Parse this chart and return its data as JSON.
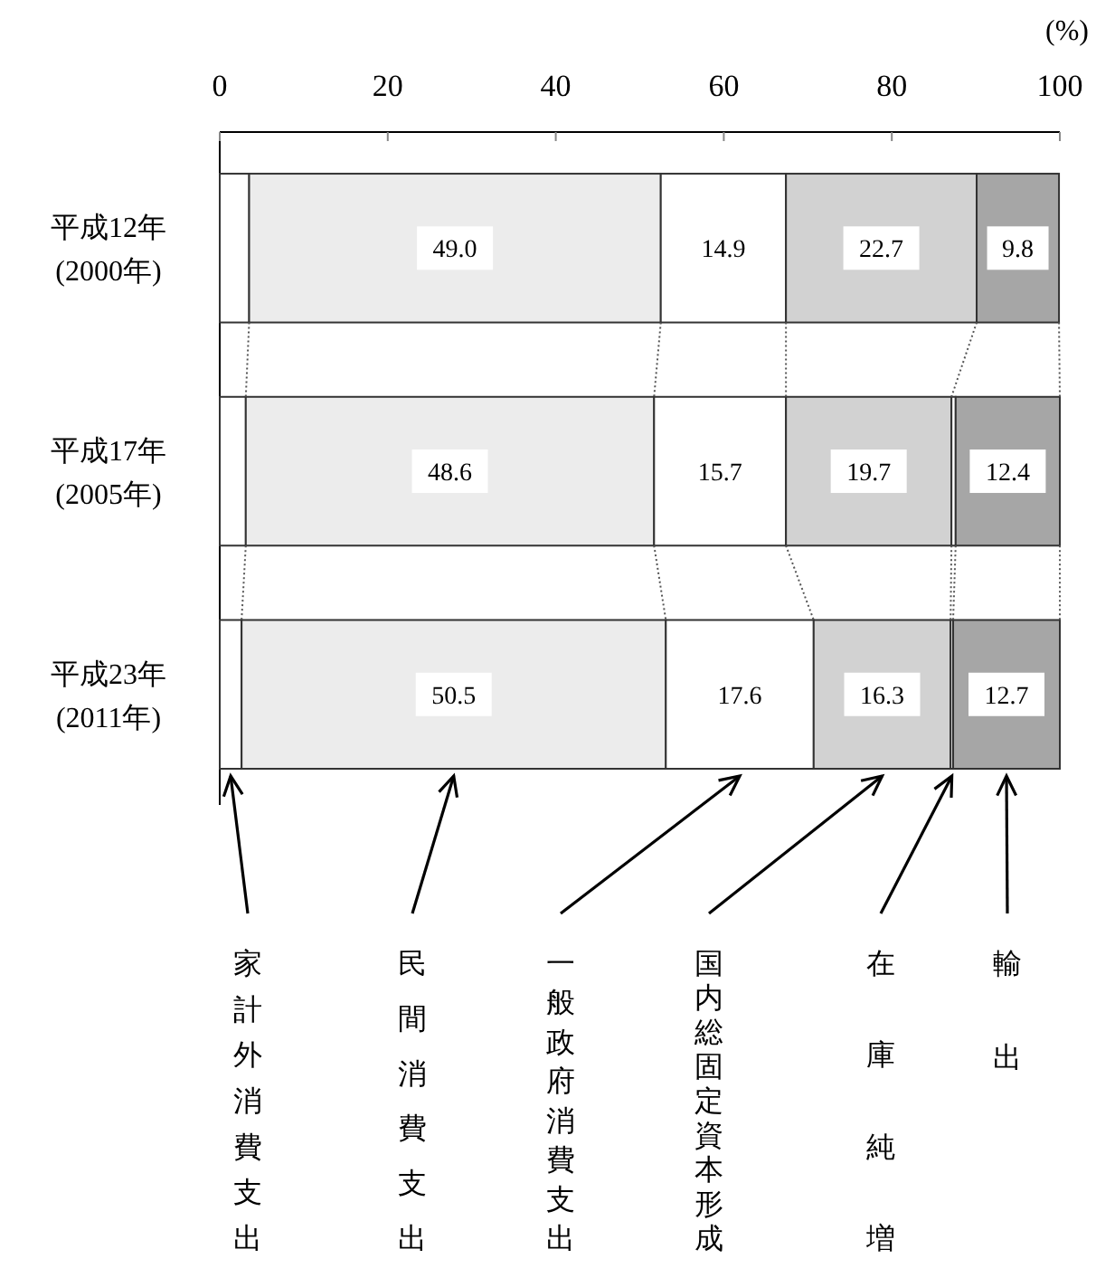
{
  "chart_data": {
    "type": "bar",
    "orientation": "horizontal",
    "stacked": true,
    "xlabel": "(%)",
    "legend": "bottom",
    "grid": false,
    "categories": [
      "平成12年\n(2000年)",
      "平成17年\n(2005年)",
      "平成23年\n(2011年)"
    ],
    "xlim": [
      0,
      100
    ],
    "xticks": [
      0,
      20,
      40,
      60,
      80,
      100
    ],
    "series": [
      {
        "name": "家計外消費支出",
        "color": "#ffffff",
        "values": [
          3.5,
          3.1,
          2.6
        ],
        "value_labels": [
          null,
          null,
          null
        ]
      },
      {
        "name": "民間消費支出",
        "color": "#ececec",
        "values": [
          49.0,
          48.6,
          50.5
        ],
        "value_labels": [
          "49.0",
          "48.6",
          "50.5"
        ]
      },
      {
        "name": "一般政府消費支出",
        "color": "#ffffff",
        "values": [
          14.9,
          15.7,
          17.6
        ],
        "value_labels": [
          "14.9",
          "15.7",
          "17.6"
        ]
      },
      {
        "name": "国内総固定資本形成",
        "color": "#d2d2d2",
        "values": [
          22.7,
          19.7,
          16.3
        ],
        "value_labels": [
          "22.7",
          "19.7",
          "16.3"
        ]
      },
      {
        "name": "在庫純増",
        "color": "#ffffff",
        "values": [
          null,
          0.5,
          0.3
        ],
        "value_labels": [
          null,
          null,
          null
        ]
      },
      {
        "name": "輸出",
        "color": "#a6a6a6",
        "values": [
          9.8,
          12.4,
          12.7
        ],
        "value_labels": [
          "9.8",
          "12.4",
          "12.7"
        ]
      }
    ]
  }
}
